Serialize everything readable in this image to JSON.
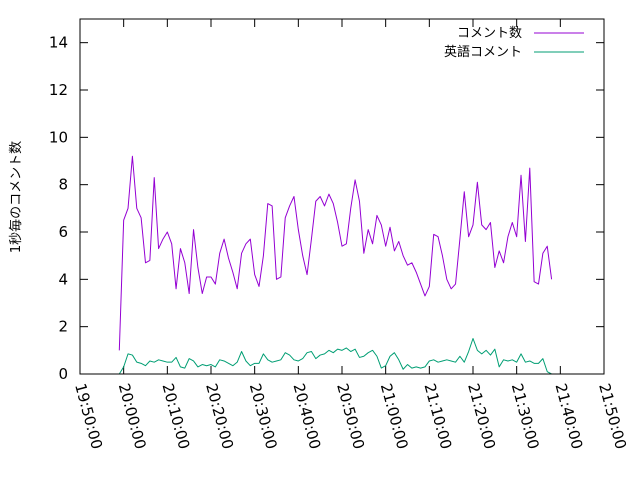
{
  "chart_data": {
    "type": "line",
    "ylabel": "1秒毎のコメント数",
    "xlabel": "",
    "xlim": [
      "19:50:00",
      "21:50:00"
    ],
    "ylim": [
      0,
      15
    ],
    "x_ticks": [
      "19:50:00",
      "20:00:00",
      "20:10:00",
      "20:20:00",
      "20:30:00",
      "20:40:00",
      "20:50:00",
      "21:00:00",
      "21:10:00",
      "21:20:00",
      "21:30:00",
      "21:40:00",
      "21:50:00"
    ],
    "y_ticks": [
      0,
      2,
      4,
      6,
      8,
      10,
      12,
      14
    ],
    "grid": false,
    "legend_position": "top-right",
    "x_start": "19:59:00",
    "x_step_seconds": 60,
    "series": [
      {
        "name": "コメント数",
        "color": "#9400d3",
        "values": [
          1.0,
          6.5,
          7.0,
          9.2,
          7.0,
          6.6,
          4.7,
          4.8,
          8.3,
          5.3,
          5.7,
          6.0,
          5.5,
          3.6,
          5.3,
          4.7,
          3.4,
          6.1,
          4.5,
          3.4,
          4.1,
          4.1,
          3.8,
          5.1,
          5.7,
          4.9,
          4.3,
          3.6,
          5.1,
          5.5,
          5.7,
          4.2,
          3.7,
          5.0,
          7.2,
          7.1,
          4.0,
          4.1,
          6.6,
          7.1,
          7.5,
          6.1,
          5.0,
          4.2,
          5.7,
          7.3,
          7.5,
          7.1,
          7.6,
          7.2,
          6.4,
          5.4,
          5.5,
          7.0,
          8.2,
          7.3,
          5.1,
          6.1,
          5.5,
          6.7,
          6.3,
          5.4,
          6.2,
          5.2,
          5.6,
          5.0,
          4.6,
          4.7,
          4.3,
          3.8,
          3.3,
          3.7,
          5.9,
          5.8,
          5.0,
          4.0,
          3.6,
          3.8,
          5.7,
          7.7,
          5.8,
          6.3,
          8.1,
          6.3,
          6.1,
          6.4,
          4.5,
          5.2,
          4.7,
          5.8,
          6.4,
          5.8,
          8.4,
          5.6,
          8.7,
          3.9,
          3.8,
          5.1,
          5.4,
          4.0
        ]
      },
      {
        "name": "英語コメント",
        "color": "#009e73",
        "values": [
          0.0,
          0.3,
          0.85,
          0.8,
          0.5,
          0.45,
          0.35,
          0.55,
          0.5,
          0.6,
          0.55,
          0.5,
          0.5,
          0.7,
          0.3,
          0.25,
          0.65,
          0.55,
          0.3,
          0.4,
          0.35,
          0.4,
          0.3,
          0.6,
          0.55,
          0.45,
          0.35,
          0.5,
          0.95,
          0.55,
          0.35,
          0.45,
          0.45,
          0.85,
          0.6,
          0.5,
          0.55,
          0.6,
          0.9,
          0.8,
          0.6,
          0.55,
          0.65,
          0.9,
          0.95,
          0.65,
          0.8,
          0.85,
          1.0,
          0.9,
          1.05,
          1.0,
          1.1,
          0.95,
          1.05,
          0.7,
          0.75,
          0.9,
          1.0,
          0.75,
          0.25,
          0.35,
          0.75,
          0.9,
          0.6,
          0.2,
          0.4,
          0.25,
          0.3,
          0.25,
          0.3,
          0.55,
          0.6,
          0.5,
          0.55,
          0.6,
          0.55,
          0.5,
          0.75,
          0.5,
          0.95,
          1.5,
          1.0,
          0.85,
          1.0,
          0.8,
          1.05,
          0.3,
          0.6,
          0.55,
          0.6,
          0.5,
          0.85,
          0.5,
          0.55,
          0.45,
          0.45,
          0.65,
          0.1,
          0.0
        ]
      }
    ]
  }
}
